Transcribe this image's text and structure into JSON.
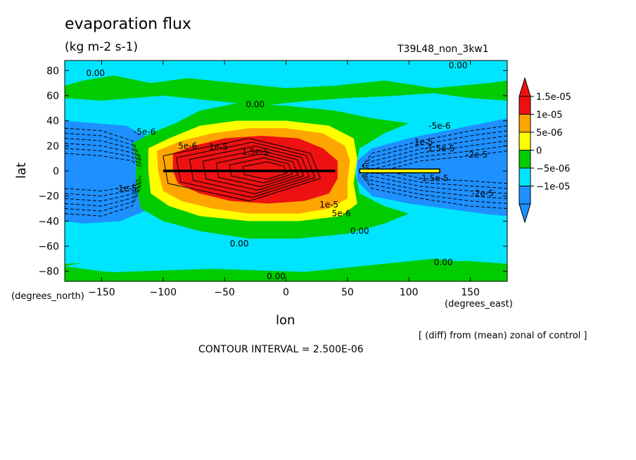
{
  "chart_data": {
    "type": "heatmap",
    "title": "evaporation flux",
    "units": "(kg m-2 s-1)",
    "run_label": "T39L48_non_3kw1",
    "xlabel": "lon",
    "ylabel": "lat",
    "x_units": "(degrees_east)",
    "y_units": "(degrees_north)",
    "xlim": [
      -180,
      180
    ],
    "ylim": [
      -88,
      88
    ],
    "x_ticks": [
      -150,
      -100,
      -50,
      0,
      50,
      100,
      150
    ],
    "y_ticks": [
      -80,
      -60,
      -40,
      -20,
      0,
      20,
      40,
      60,
      80
    ],
    "colorbar": {
      "labels": [
        "1.5e-05",
        "1e-05",
        "5e-06",
        "0",
        "-5e-06",
        "-1e-05"
      ],
      "levels": [
        -1e-05,
        -5e-06,
        0,
        5e-06,
        1e-05,
        1.5e-05
      ],
      "colors": [
        "#1e90ff",
        "#00e5ff",
        "#00cc00",
        "#ffff00",
        "#ffa500",
        "#ee1111"
      ]
    },
    "contour_labels": [
      {
        "text": "0.00",
        "x": -155,
        "y": 78
      },
      {
        "text": "0.00",
        "x": 140,
        "y": 84
      },
      {
        "text": "0.00",
        "x": -25,
        "y": 53
      },
      {
        "text": "-5e-6",
        "x": 125,
        "y": 36
      },
      {
        "text": "-5e-6",
        "x": -115,
        "y": 31
      },
      {
        "text": "1e-5",
        "x": 112,
        "y": 23
      },
      {
        "text": "-1.5e-5",
        "x": 125,
        "y": 18
      },
      {
        "text": "-2e-5",
        "x": 155,
        "y": 13
      },
      {
        "text": "5e-6",
        "x": -80,
        "y": 20
      },
      {
        "text": "1e-5",
        "x": -55,
        "y": 19
      },
      {
        "text": "1.5e-5",
        "x": -25,
        "y": 15
      },
      {
        "text": "-1e-5",
        "x": -130,
        "y": -14
      },
      {
        "text": "-1.5e-5",
        "x": 120,
        "y": -6
      },
      {
        "text": "-2e-5",
        "x": 160,
        "y": -18
      },
      {
        "text": "1e-5",
        "x": 35,
        "y": -27
      },
      {
        "text": "5e-6",
        "x": 45,
        "y": -34
      },
      {
        "text": "0.00",
        "x": 60,
        "y": -48
      },
      {
        "text": "0.00",
        "x": -38,
        "y": -58
      },
      {
        "text": "0.00",
        "x": 128,
        "y": -73
      },
      {
        "text": "0.00",
        "x": -8,
        "y": -84
      }
    ],
    "contour_interval": "CONTOUR INTERVAL = 2.500E-06",
    "note": "[ (diff) from (mean) zonal of control ]"
  }
}
